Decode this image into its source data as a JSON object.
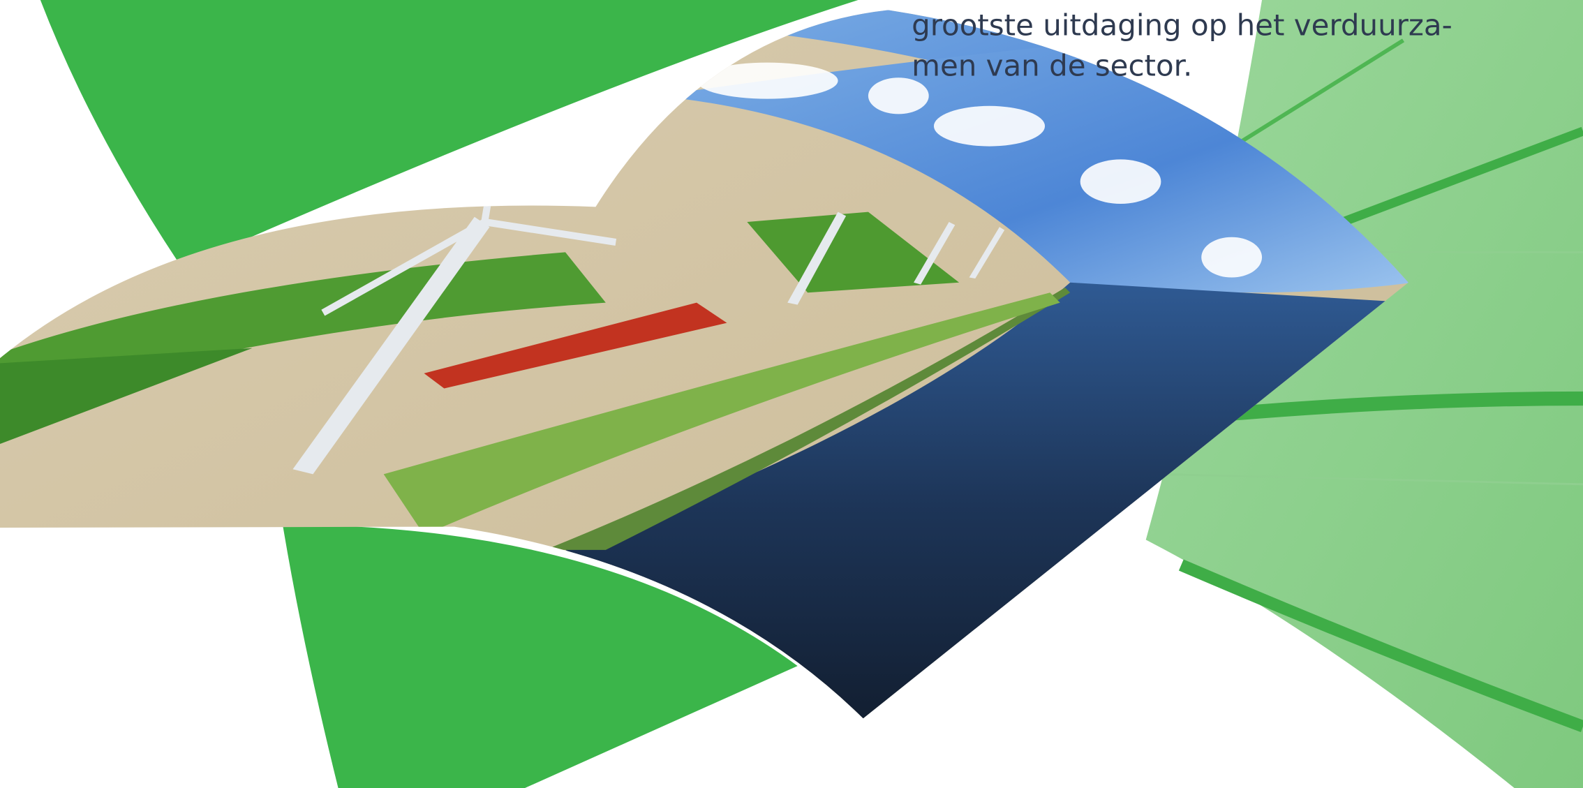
{
  "body_text": {
    "lines": [
      "grootste uitdaging op het verduurza-",
      "men van de sector."
    ]
  }
}
